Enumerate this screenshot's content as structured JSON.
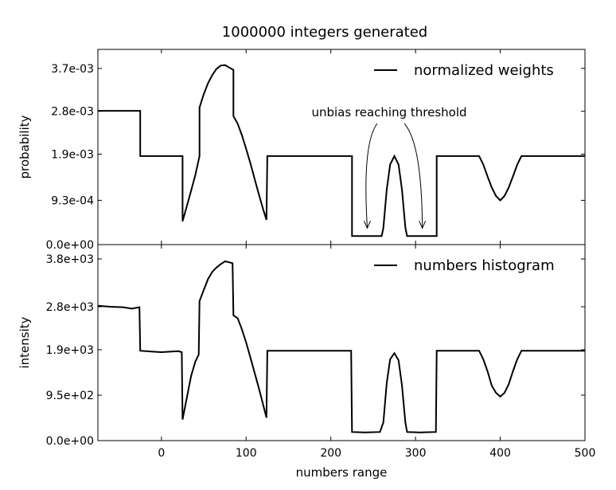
{
  "title": "1000000 integers generated",
  "chart_data": [
    {
      "type": "line",
      "panel": "top",
      "ylabel": "probability",
      "xlabel": "",
      "xlim": [
        -75,
        500
      ],
      "ylim": [
        0,
        0.0041
      ],
      "yticks": [
        0,
        0.00093,
        0.0019,
        0.0028,
        0.0037
      ],
      "ytick_labels": [
        "0.0e+00",
        "9.3e-04",
        "1.9e-03",
        "2.8e-03",
        "3.7e-03"
      ],
      "legend": {
        "position": "top-right",
        "entries": [
          "normalized weights"
        ]
      },
      "annotation": {
        "text": "unbias reaching threshold",
        "targets": [
          [
            243,
            0.00033
          ],
          [
            308,
            0.00033
          ]
        ]
      },
      "series": [
        {
          "name": "normalized weights",
          "x": [
            -75,
            -25,
            -25,
            25,
            25,
            30,
            35,
            40,
            45,
            45,
            50,
            55,
            60,
            65,
            70,
            75,
            80,
            85,
            85,
            90,
            95,
            100,
            105,
            110,
            115,
            120,
            124,
            125,
            125,
            150,
            175,
            200,
            225,
            225,
            240,
            260,
            262,
            266,
            270,
            275,
            280,
            284,
            288,
            290,
            300,
            325,
            325,
            350,
            375,
            380,
            385,
            390,
            395,
            400,
            405,
            410,
            415,
            420,
            425,
            450,
            500
          ],
          "y": [
            0.00281,
            0.00281,
            0.00186,
            0.00186,
            0.00049,
            0.00081,
            0.00113,
            0.00146,
            0.00186,
            0.00288,
            0.00316,
            0.00339,
            0.00356,
            0.00369,
            0.00376,
            0.00377,
            0.00372,
            0.00367,
            0.0027,
            0.00254,
            0.0023,
            0.00201,
            0.00171,
            0.00138,
            0.00106,
            0.00075,
            0.00052,
            0.00186,
            0.00186,
            0.00186,
            0.00186,
            0.00186,
            0.00186,
            0.00018,
            0.00018,
            0.00018,
            0.00035,
            0.00115,
            0.00168,
            0.00186,
            0.00168,
            0.00115,
            0.00035,
            0.00018,
            0.00018,
            0.00018,
            0.00186,
            0.00186,
            0.00186,
            0.00168,
            0.00143,
            0.0012,
            0.00102,
            0.00093,
            0.00102,
            0.0012,
            0.00143,
            0.00168,
            0.00186,
            0.00186,
            0.00186
          ]
        }
      ]
    },
    {
      "type": "line",
      "panel": "bottom",
      "ylabel": "intensity",
      "xlabel": "numbers range",
      "xlim": [
        -75,
        500
      ],
      "ylim": [
        0,
        4100
      ],
      "xticks": [
        0,
        100,
        200,
        300,
        400,
        500
      ],
      "xtick_labels": [
        "0",
        "100",
        "200",
        "300",
        "400",
        "500"
      ],
      "yticks": [
        0,
        950,
        1900,
        2800,
        3800
      ],
      "ytick_labels": [
        "0.0e+00",
        "9.5e+02",
        "1.9e+03",
        "2.8e+03",
        "3.8e+03"
      ],
      "legend": {
        "position": "top-right",
        "entries": [
          "numbers histogram"
        ]
      },
      "series": [
        {
          "name": "numbers histogram",
          "x": [
            -75,
            -60,
            -45,
            -35,
            -26,
            -25,
            -10,
            0,
            10,
            20,
            24,
            25,
            30,
            35,
            40,
            44,
            45,
            50,
            55,
            60,
            65,
            70,
            75,
            80,
            84,
            85,
            90,
            95,
            100,
            105,
            110,
            115,
            120,
            124,
            125,
            150,
            175,
            200,
            224,
            225,
            240,
            258,
            262,
            266,
            270,
            275,
            280,
            284,
            288,
            290,
            305,
            324,
            325,
            350,
            375,
            380,
            385,
            390,
            395,
            400,
            405,
            410,
            415,
            420,
            425,
            450,
            475,
            500
          ],
          "y": [
            2820,
            2800,
            2790,
            2760,
            2790,
            1880,
            1860,
            1850,
            1860,
            1870,
            1850,
            440,
            900,
            1350,
            1650,
            1800,
            2920,
            3150,
            3380,
            3530,
            3620,
            3690,
            3750,
            3730,
            3710,
            2620,
            2560,
            2330,
            2050,
            1740,
            1420,
            1100,
            760,
            480,
            1880,
            1880,
            1880,
            1880,
            1880,
            180,
            170,
            180,
            380,
            1200,
            1700,
            1830,
            1680,
            1150,
            370,
            180,
            170,
            180,
            1880,
            1880,
            1880,
            1700,
            1450,
            1150,
            1000,
            920,
            1000,
            1180,
            1450,
            1700,
            1880,
            1880,
            1880,
            1880
          ]
        }
      ]
    }
  ]
}
